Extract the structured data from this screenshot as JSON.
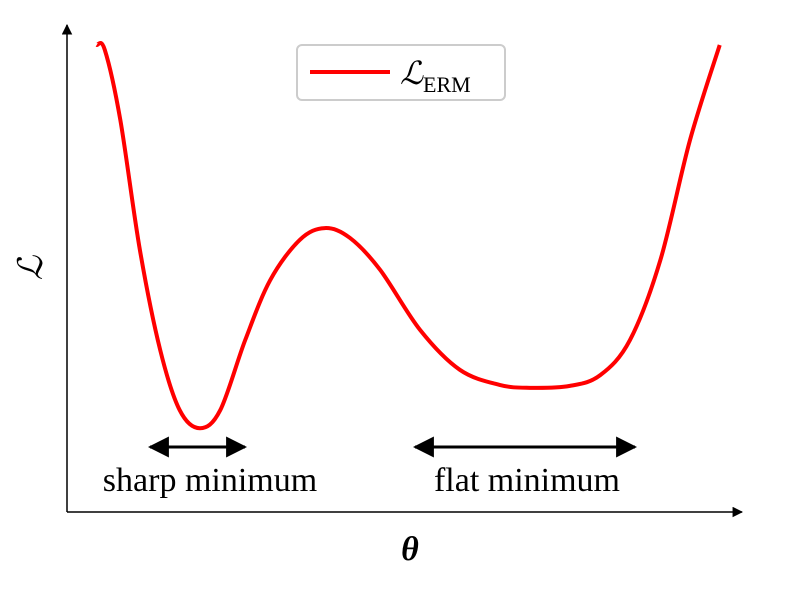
{
  "chart_data": {
    "type": "line",
    "x_label": "θ",
    "y_label": "ℒ",
    "x": [
      0.44,
      0.56,
      0.79,
      1.08,
      1.38,
      1.67,
      1.97,
      2.27,
      2.64,
      3.01,
      3.45,
      3.82,
      4.19,
      4.64,
      5.23,
      5.82,
      6.41,
      6.86,
      7.45,
      7.9,
      8.34,
      8.79,
      9.23,
      9.67
    ],
    "series": [
      {
        "name": "ℒ",
        "name_subscript": "ERM",
        "color": "#ff0000",
        "values": [
          9.59,
          9.49,
          8.05,
          5.38,
          3.33,
          2.09,
          1.72,
          2.09,
          3.53,
          4.76,
          5.59,
          5.83,
          5.63,
          4.97,
          3.74,
          2.92,
          2.61,
          2.55,
          2.59,
          2.81,
          3.53,
          5.17,
          7.64,
          9.59
        ]
      }
    ],
    "xlim": [
      0,
      10
    ],
    "ylim": [
      0,
      10
    ],
    "annotations": [
      "sharp minimum",
      "flat minimum"
    ]
  }
}
